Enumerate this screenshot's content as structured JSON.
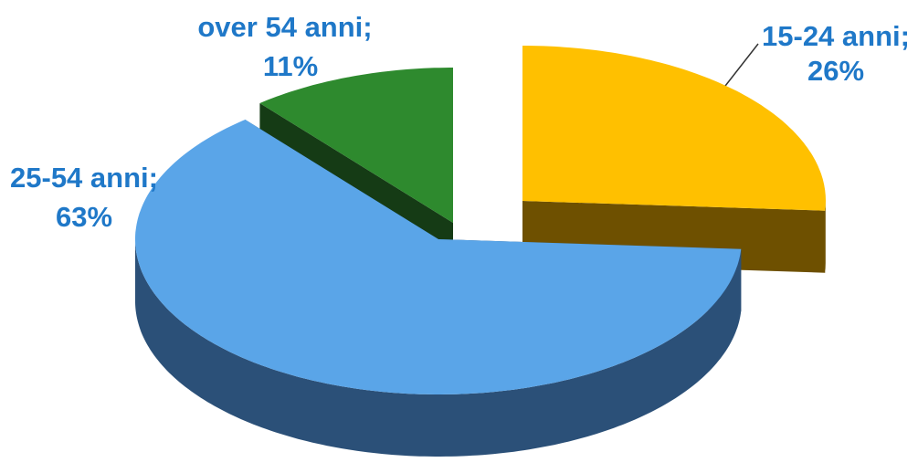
{
  "chart_data": {
    "type": "pie",
    "categories": [
      "15-24 anni;",
      "25-54 anni;",
      "over 54 anni;"
    ],
    "values": [
      26,
      63,
      11
    ],
    "value_labels": [
      "26%",
      "63%",
      "11%"
    ],
    "colors": [
      "#ffc000",
      "#5aa5e8",
      "#2e8a2e"
    ],
    "side_colors": [
      "#6e5000",
      "#2b5078",
      "#153b15"
    ]
  }
}
